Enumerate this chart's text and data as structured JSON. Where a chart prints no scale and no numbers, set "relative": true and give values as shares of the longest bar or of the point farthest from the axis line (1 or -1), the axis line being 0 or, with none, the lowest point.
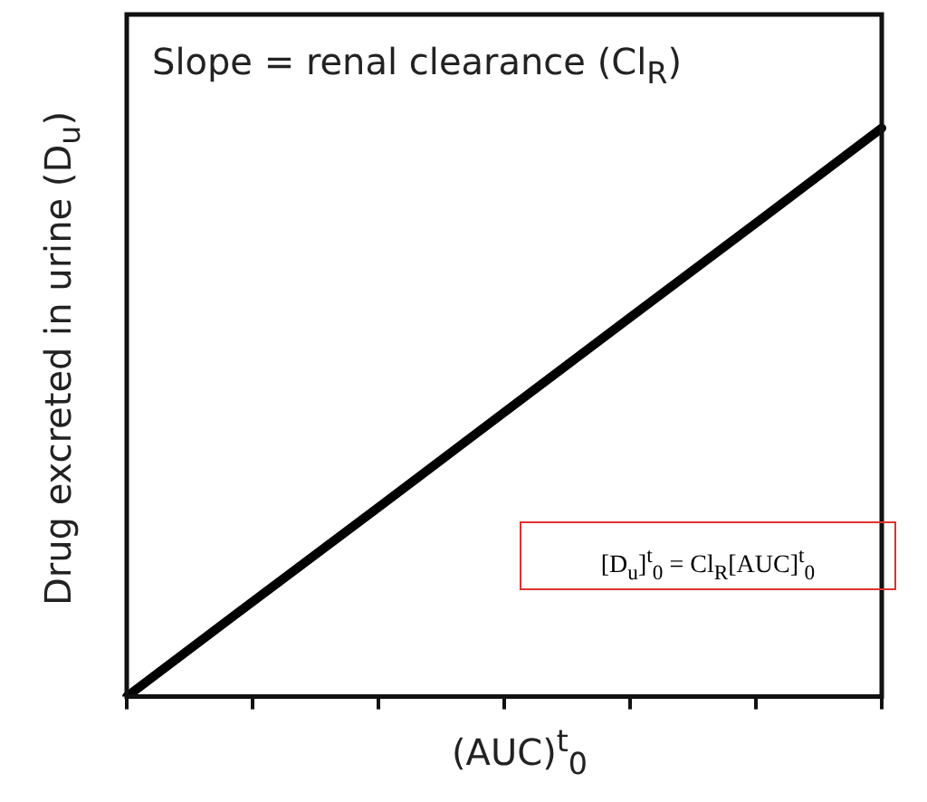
{
  "chart_data": {
    "type": "line",
    "title": "Slope = renal clearance (Cl$_{R}$)",
    "xlabel": "(AUC)$^{t}$$_{0}$",
    "ylabel": "Drug excreted in urine (D$_{u}$)",
    "annotations": [
      "[D$_{u}$]$^{t}$$_{0}$ = Cl$_{R}$[AUC]$^{t}$$_{0}$"
    ],
    "relative": true,
    "categories": [
      null,
      null,
      null,
      null,
      null,
      null,
      null
    ],
    "series": [
      {
        "color": "#000000",
        "values": [
          0,
          0.167,
          0.333,
          0.5,
          0.667,
          0.833,
          1
        ]
      }
    ],
    "marker": "none",
    "grid": false,
    "legend": false
  }
}
